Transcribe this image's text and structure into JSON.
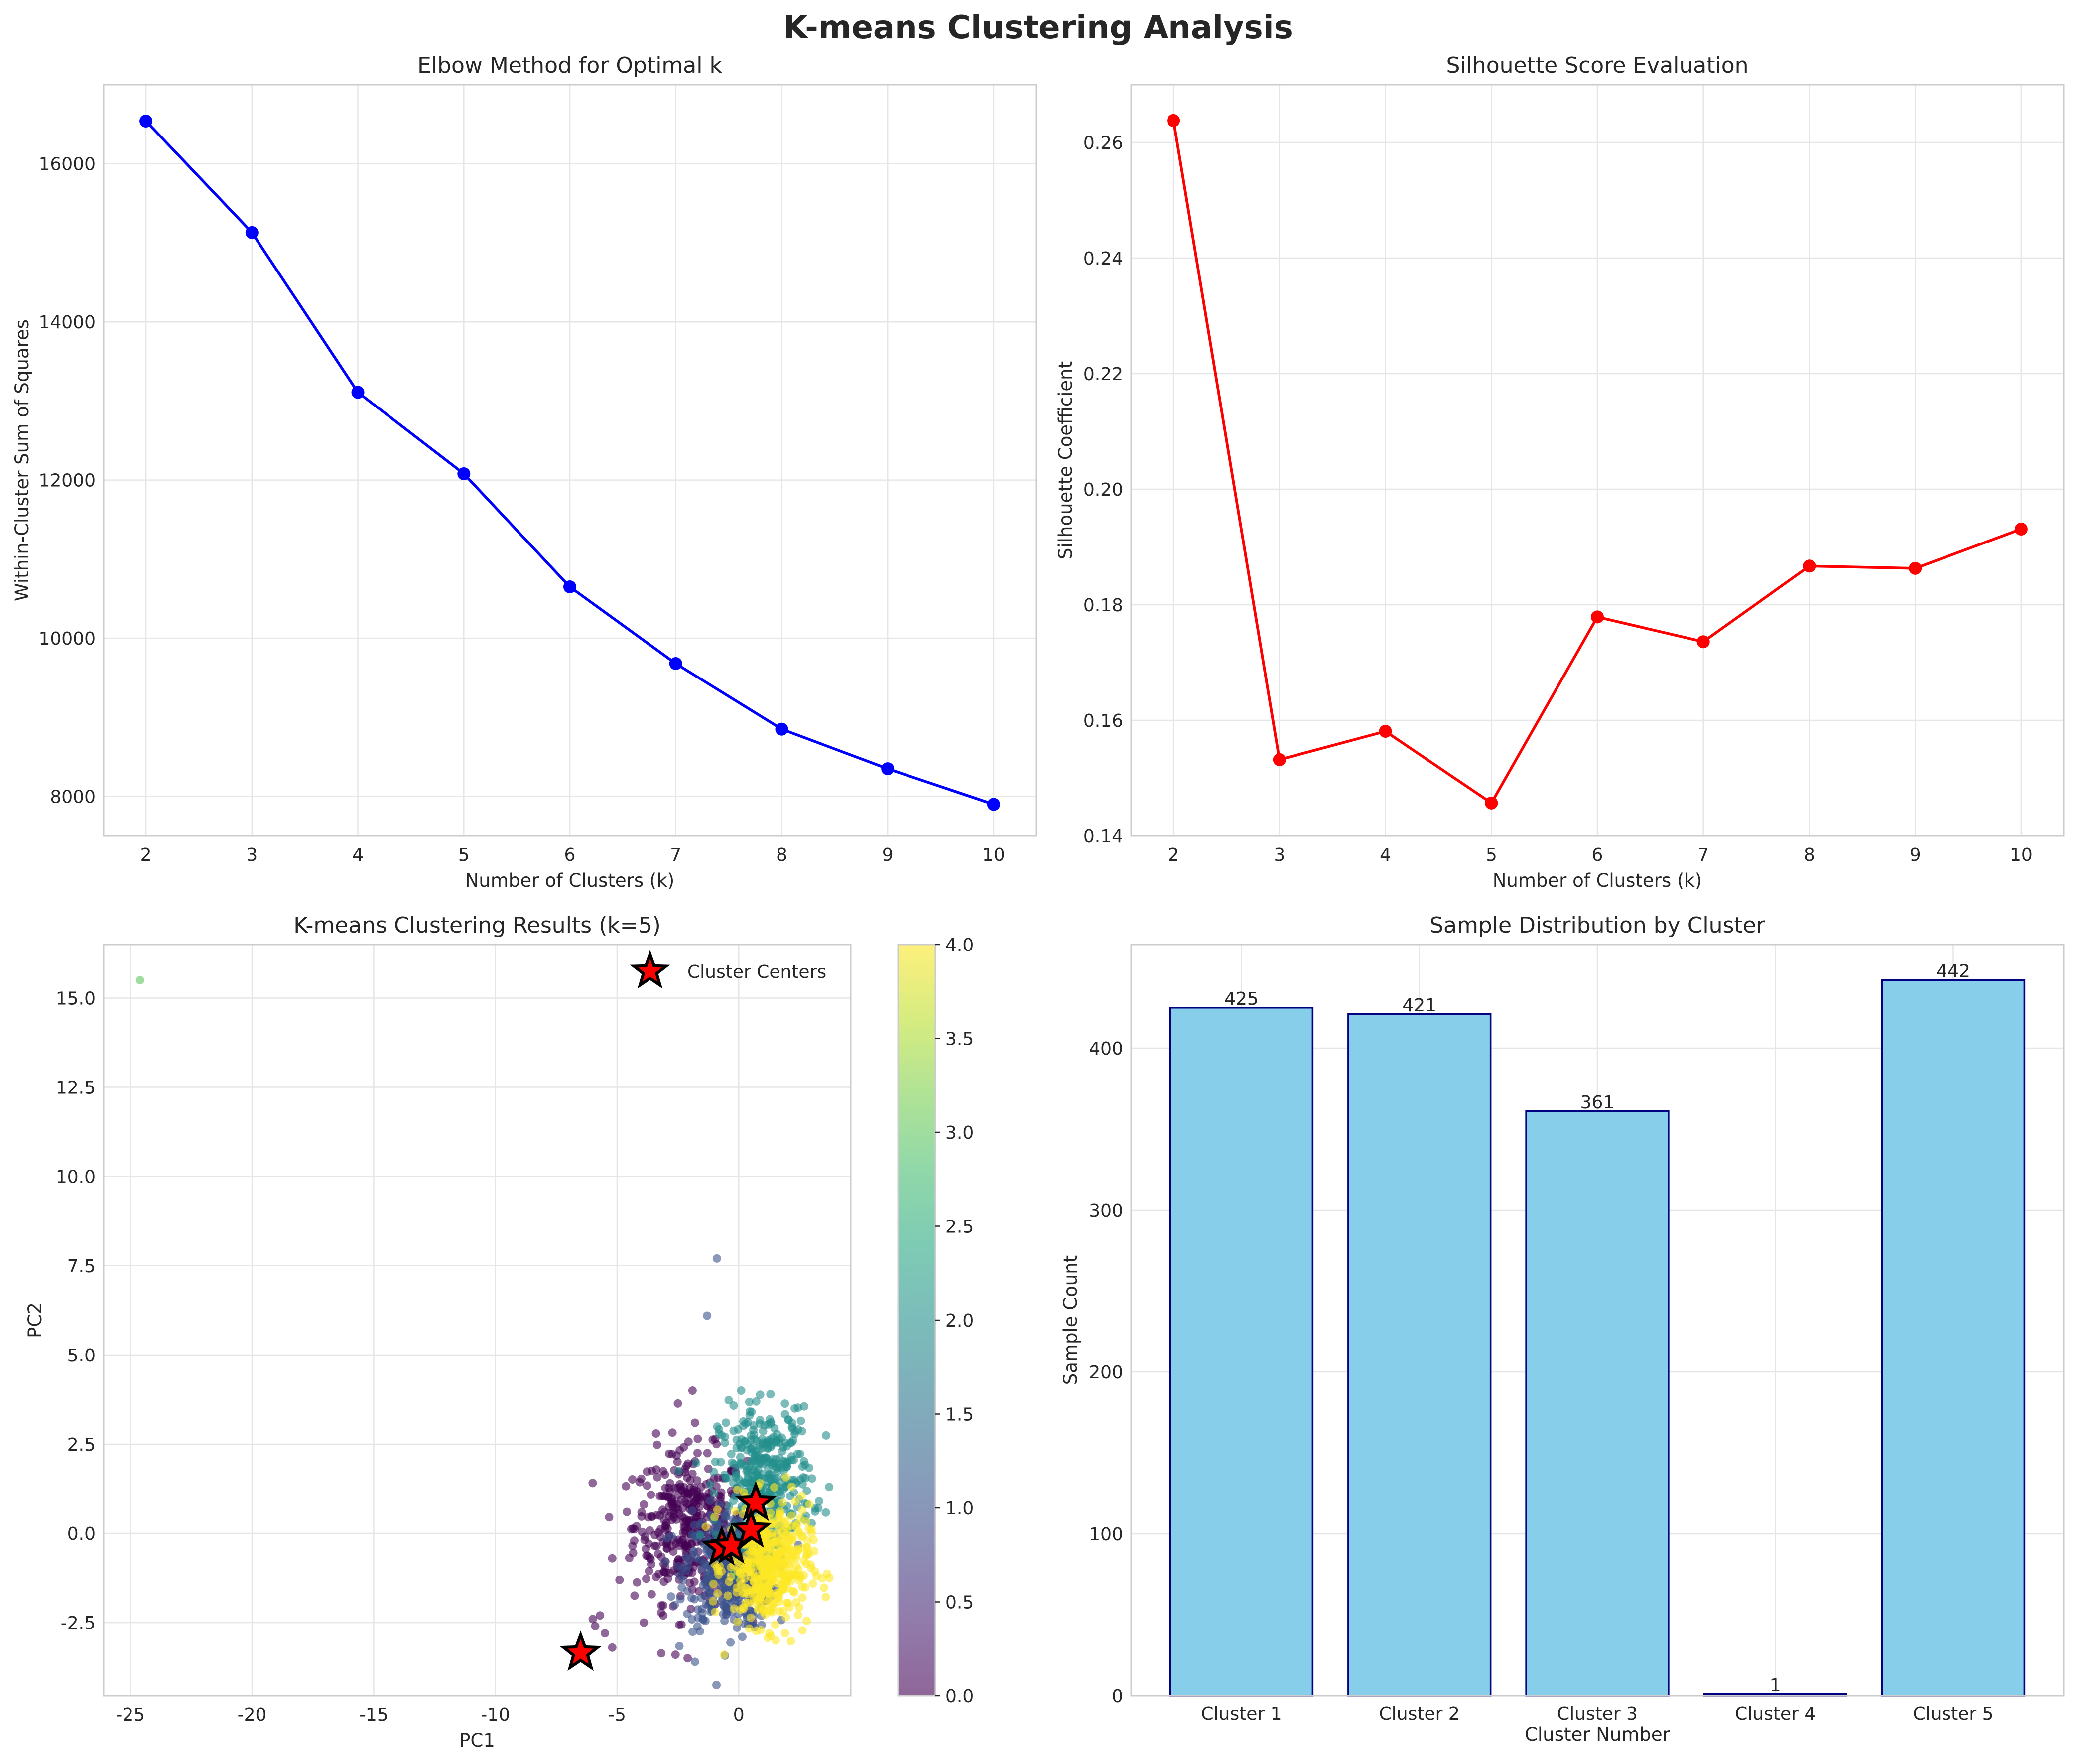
{
  "title": "K-means Clustering Analysis",
  "chart_data": [
    {
      "type": "line",
      "title": "Elbow Method for Optimal k",
      "xlabel": "Number of Clusters (k)",
      "ylabel": "Within-Cluster Sum of Squares",
      "x": [
        2,
        3,
        4,
        5,
        6,
        7,
        8,
        9,
        10
      ],
      "y": [
        16540,
        15130,
        13110,
        12080,
        10650,
        9680,
        8850,
        8350,
        7900
      ],
      "xlim": [
        1.6,
        10.4
      ],
      "ylim": [
        7500,
        17000
      ],
      "xticks": [
        2,
        3,
        4,
        5,
        6,
        7,
        8,
        9,
        10
      ],
      "yticks": [
        8000,
        10000,
        12000,
        14000,
        16000
      ],
      "grid": true,
      "color": "#0000ff"
    },
    {
      "type": "line",
      "title": "Silhouette Score Evaluation",
      "xlabel": "Number of Clusters (k)",
      "ylabel": "Silhouette Coefficient",
      "x": [
        2,
        3,
        4,
        5,
        6,
        7,
        8,
        9,
        10
      ],
      "y": [
        0.2638,
        0.1532,
        0.1581,
        0.1457,
        0.1779,
        0.1736,
        0.1867,
        0.1863,
        0.1931
      ],
      "xlim": [
        1.6,
        10.4
      ],
      "ylim": [
        0.14,
        0.27
      ],
      "xticks": [
        2,
        3,
        4,
        5,
        6,
        7,
        8,
        9,
        10
      ],
      "yticks": [
        0.14,
        0.16,
        0.18,
        0.2,
        0.22,
        0.24,
        0.26
      ],
      "grid": true,
      "color": "#ff0000"
    },
    {
      "type": "scatter",
      "title": "K-means Clustering Results (k=5)",
      "xlabel": "PC1",
      "ylabel": "PC2",
      "xlim": [
        -26.1,
        4.6
      ],
      "ylim": [
        -4.55,
        16.5
      ],
      "xticks": [
        -25,
        -20,
        -15,
        -10,
        -5,
        0
      ],
      "yticks": [
        -2.5,
        0.0,
        2.5,
        5.0,
        7.5,
        10.0,
        12.5,
        15.0
      ],
      "colorbar": {
        "min": 0.0,
        "max": 4.0,
        "ticks": [
          "0.0",
          "0.5",
          "1.0",
          "1.5",
          "2.0",
          "2.5",
          "3.0",
          "3.5",
          "4.0"
        ],
        "colormap": "viridis"
      },
      "clusters": [
        {
          "label": 0,
          "count": 425,
          "center": [
            -2.0,
            0.2
          ],
          "spread": [
            1.15,
            1.05
          ],
          "extra_points": [
            [
              -3.4,
              2.8
            ],
            [
              -1.9,
              4.0
            ],
            [
              -4.6,
              0.6
            ],
            [
              -5.2,
              -0.7
            ],
            [
              -4.9,
              -1.3
            ],
            [
              -3.1,
              -2.3
            ],
            [
              -2.6,
              -3.4
            ],
            [
              -2.1,
              -3.5
            ],
            [
              -1.8,
              3.1
            ],
            [
              -4.2,
              0.2
            ],
            [
              -5.7,
              -2.3
            ],
            [
              -5.5,
              -2.8
            ],
            [
              -5.9,
              -2.6
            ],
            [
              -6.0,
              -2.4
            ],
            [
              -5.2,
              -3.2
            ],
            [
              -3.9,
              -2.5
            ]
          ]
        },
        {
          "label": 1,
          "count": 421,
          "center": [
            -0.4,
            -1.0
          ],
          "spread": [
            0.9,
            0.85
          ],
          "extra_points": [
            [
              -0.9,
              7.7
            ],
            [
              -1.3,
              6.1
            ],
            [
              -1.8,
              -3.6
            ]
          ]
        },
        {
          "label": 2,
          "count": 361,
          "center": [
            1.1,
            1.6
          ],
          "spread": [
            0.95,
            0.95
          ],
          "extra_points": [
            [
              2.3,
              3.5
            ],
            [
              1.3,
              3.9
            ],
            [
              0.1,
              4.0
            ],
            [
              3.3,
              0.9
            ]
          ]
        },
        {
          "label": 3,
          "count": 1,
          "center": [
            -24.6,
            15.5
          ],
          "spread": [
            0,
            0
          ],
          "extra_points": []
        },
        {
          "label": 4,
          "count": 442,
          "center": [
            1.2,
            -0.9
          ],
          "spread": [
            0.85,
            0.85
          ],
          "extra_points": [
            [
              1.9,
              -2.8
            ],
            [
              -0.6,
              -3.4
            ],
            [
              3.1,
              -0.5
            ]
          ]
        }
      ],
      "centers": [
        [
          -0.7,
          -0.4
        ],
        [
          -0.3,
          -0.35
        ],
        [
          0.7,
          0.85
        ],
        [
          0.5,
          0.1
        ],
        [
          -6.5,
          -3.35
        ]
      ],
      "legend": {
        "label": "Cluster Centers",
        "placement": "upper right"
      },
      "grid": true
    },
    {
      "type": "bar",
      "title": "Sample Distribution by Cluster",
      "xlabel": "Cluster Number",
      "ylabel": "Sample Count",
      "categories": [
        "Cluster 1",
        "Cluster 2",
        "Cluster 3",
        "Cluster 4",
        "Cluster 5"
      ],
      "values": [
        425,
        421,
        361,
        1,
        442
      ],
      "data_labels": [
        "425",
        "421",
        "361",
        "1",
        "442"
      ],
      "ylim": [
        0,
        464
      ],
      "yticks": [
        0,
        100,
        200,
        300,
        400
      ],
      "grid": true,
      "bar_color": "#87ceeb",
      "edge_color": "#000080"
    }
  ]
}
